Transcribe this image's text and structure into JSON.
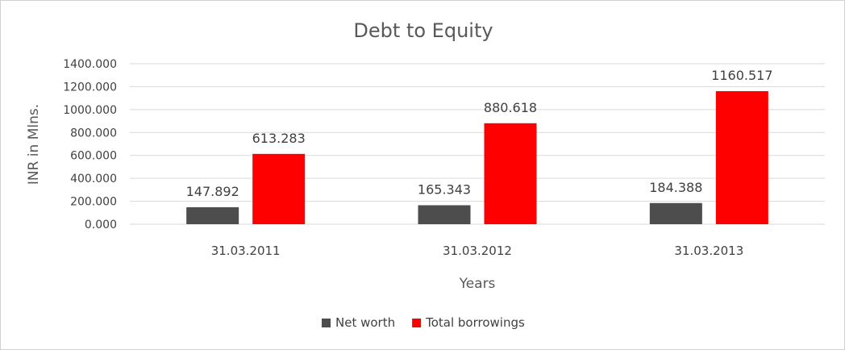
{
  "chart_data": {
    "type": "bar",
    "title": "Debt to Equity",
    "xlabel": "Years",
    "ylabel": "INR in Mlns.",
    "categories": [
      "31.03.2011",
      "31.03.2012",
      "31.03.2013"
    ],
    "series": [
      {
        "name": "Net worth",
        "color": "#4d4d4d",
        "values": [
          147.892,
          165.343,
          184.388
        ],
        "labels": [
          "147.892",
          "165.343",
          "184.388"
        ]
      },
      {
        "name": "Total borrowings",
        "color": "#ff0000",
        "values": [
          613.283,
          880.618,
          1160.517
        ],
        "labels": [
          "613.283",
          "880.618",
          "1160.517"
        ]
      }
    ],
    "ylim": [
      0,
      1400
    ],
    "yticks": [
      0,
      200,
      400,
      600,
      800,
      1000,
      1200,
      1400
    ],
    "ytick_labels": [
      "0.000",
      "200.000",
      "400.000",
      "600.000",
      "800.000",
      "1000.000",
      "1200.000",
      "1400.000"
    ],
    "grid": true,
    "gridline_color": "#d9d9d9",
    "legend_position": "bottom"
  }
}
